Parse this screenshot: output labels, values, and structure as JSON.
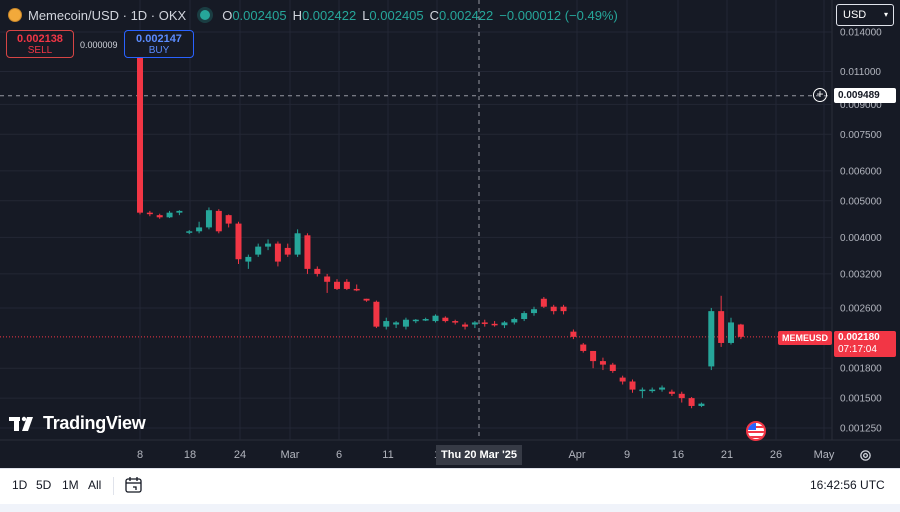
{
  "header": {
    "symbol_title": "Memecoin/USD · 1D · OKX",
    "ohlc": {
      "o_label": "O",
      "o": "0.002405",
      "h_label": "H",
      "h": "0.002422",
      "l_label": "L",
      "l": "0.002405",
      "c_label": "C",
      "c": "0.002422",
      "change": "−0.000012 (−0.49%)"
    },
    "currency": "USD",
    "currency_caret": "▾"
  },
  "trade": {
    "sell_price": "0.002138",
    "sell_label": "SELL",
    "spread": "0.000009",
    "buy_price": "0.002147",
    "buy_label": "BUY"
  },
  "overlay": {
    "crosshair_price": "0.009489",
    "plus_glyph": "+",
    "symbol_tag": "MEMEUSD",
    "last_price": "0.002180",
    "countdown": "07:17:04",
    "crosshair_date": "Thu 20 Mar '25",
    "logo_text": "TradingView"
  },
  "colors": {
    "background": "#161a25",
    "up": "#26a69a",
    "down": "#f23645",
    "grid": "#232735",
    "axis_text": "#b2b5be"
  },
  "icons": [
    "coin-icon",
    "market-status-icon",
    "plus-icon",
    "flag-icon",
    "gear-icon",
    "calendar-icon",
    "tradingview-logo-icon"
  ],
  "bottom": {
    "timeframes": [
      "1D",
      "5D",
      "1M",
      "All"
    ],
    "clock": "16:42:56 UTC"
  },
  "chart_data": {
    "type": "candlestick",
    "y_scale": "log",
    "ylim": [
      0.00115,
      0.0155
    ],
    "ytick_labels": [
      "0.014000",
      "0.011000",
      "0.009000",
      "0.007500",
      "0.006000",
      "0.005000",
      "0.004000",
      "0.003200",
      "0.002600",
      "0.001800",
      "0.001500",
      "0.001250"
    ],
    "xtick_labels": [
      "8",
      "18",
      "24",
      "Mar",
      "6",
      "11",
      "1",
      "Apr",
      "9",
      "16",
      "21",
      "26",
      "May"
    ],
    "series": [
      {
        "values": [
          {
            "o": 0.013,
            "h": 0.013,
            "l": 0.0046,
            "c": 0.00465
          },
          {
            "o": 0.00465,
            "h": 0.0047,
            "l": 0.00455,
            "c": 0.00462
          },
          {
            "o": 0.00458,
            "h": 0.00462,
            "l": 0.00448,
            "c": 0.00452
          },
          {
            "o": 0.00452,
            "h": 0.0047,
            "l": 0.0045,
            "c": 0.00465
          },
          {
            "o": 0.00465,
            "h": 0.00472,
            "l": 0.00458,
            "c": 0.0047
          },
          {
            "o": 0.00412,
            "h": 0.00418,
            "l": 0.00408,
            "c": 0.00415
          },
          {
            "o": 0.00415,
            "h": 0.0044,
            "l": 0.0041,
            "c": 0.00425
          },
          {
            "o": 0.00425,
            "h": 0.0048,
            "l": 0.0042,
            "c": 0.00472
          },
          {
            "o": 0.0047,
            "h": 0.00475,
            "l": 0.0041,
            "c": 0.00415
          },
          {
            "o": 0.00458,
            "h": 0.0046,
            "l": 0.00425,
            "c": 0.00435
          },
          {
            "o": 0.00435,
            "h": 0.0044,
            "l": 0.0034,
            "c": 0.0035
          },
          {
            "o": 0.00345,
            "h": 0.0036,
            "l": 0.0033,
            "c": 0.00355
          },
          {
            "o": 0.0036,
            "h": 0.00385,
            "l": 0.00355,
            "c": 0.00378
          },
          {
            "o": 0.00378,
            "h": 0.00395,
            "l": 0.0037,
            "c": 0.00385
          },
          {
            "o": 0.00385,
            "h": 0.0039,
            "l": 0.00335,
            "c": 0.00345
          },
          {
            "o": 0.00375,
            "h": 0.00385,
            "l": 0.00355,
            "c": 0.0036
          },
          {
            "o": 0.0036,
            "h": 0.0042,
            "l": 0.00355,
            "c": 0.0041
          },
          {
            "o": 0.00405,
            "h": 0.0041,
            "l": 0.0032,
            "c": 0.0033
          },
          {
            "o": 0.0033,
            "h": 0.00335,
            "l": 0.00315,
            "c": 0.0032
          },
          {
            "o": 0.00315,
            "h": 0.0032,
            "l": 0.00285,
            "c": 0.00305
          },
          {
            "o": 0.00305,
            "h": 0.0031,
            "l": 0.0029,
            "c": 0.00292
          },
          {
            "o": 0.00305,
            "h": 0.0031,
            "l": 0.0029,
            "c": 0.00292
          },
          {
            "o": 0.00292,
            "h": 0.003,
            "l": 0.00288,
            "c": 0.0029
          },
          {
            "o": 0.00275,
            "h": 0.00275,
            "l": 0.0027,
            "c": 0.00272
          },
          {
            "o": 0.0027,
            "h": 0.00272,
            "l": 0.0023,
            "c": 0.00232
          },
          {
            "o": 0.00232,
            "h": 0.00245,
            "l": 0.00228,
            "c": 0.0024
          },
          {
            "o": 0.00235,
            "h": 0.0024,
            "l": 0.0023,
            "c": 0.00238
          },
          {
            "o": 0.00232,
            "h": 0.00245,
            "l": 0.00228,
            "c": 0.00242
          },
          {
            "o": 0.0024,
            "h": 0.00243,
            "l": 0.00237,
            "c": 0.00242
          },
          {
            "o": 0.00242,
            "h": 0.00245,
            "l": 0.0024,
            "c": 0.00243
          },
          {
            "o": 0.0024,
            "h": 0.0025,
            "l": 0.00238,
            "c": 0.00248
          },
          {
            "o": 0.00245,
            "h": 0.00247,
            "l": 0.00238,
            "c": 0.0024
          },
          {
            "o": 0.0024,
            "h": 0.00242,
            "l": 0.00235,
            "c": 0.00238
          },
          {
            "o": 0.00235,
            "h": 0.00238,
            "l": 0.00228,
            "c": 0.00232
          },
          {
            "o": 0.00235,
            "h": 0.0024,
            "l": 0.0023,
            "c": 0.00238
          },
          {
            "o": 0.00238,
            "h": 0.00242,
            "l": 0.00232,
            "c": 0.00236
          },
          {
            "o": 0.00236,
            "h": 0.0024,
            "l": 0.00232,
            "c": 0.00234
          },
          {
            "o": 0.00234,
            "h": 0.0024,
            "l": 0.0023,
            "c": 0.00238
          },
          {
            "o": 0.00238,
            "h": 0.00245,
            "l": 0.00235,
            "c": 0.00243
          },
          {
            "o": 0.00243,
            "h": 0.00255,
            "l": 0.0024,
            "c": 0.00252
          },
          {
            "o": 0.00252,
            "h": 0.00262,
            "l": 0.00248,
            "c": 0.00258
          },
          {
            "o": 0.00275,
            "h": 0.00278,
            "l": 0.0026,
            "c": 0.00262
          },
          {
            "o": 0.00262,
            "h": 0.00265,
            "l": 0.0025,
            "c": 0.00255
          },
          {
            "o": 0.00262,
            "h": 0.00265,
            "l": 0.0025,
            "c": 0.00255
          },
          {
            "o": 0.00225,
            "h": 0.00228,
            "l": 0.00215,
            "c": 0.00218
          },
          {
            "o": 0.00208,
            "h": 0.0021,
            "l": 0.00198,
            "c": 0.002
          },
          {
            "o": 0.002,
            "h": 0.002,
            "l": 0.0018,
            "c": 0.00188
          },
          {
            "o": 0.00188,
            "h": 0.00192,
            "l": 0.00178,
            "c": 0.00184
          },
          {
            "o": 0.00184,
            "h": 0.00186,
            "l": 0.00175,
            "c": 0.00177
          },
          {
            "o": 0.0017,
            "h": 0.00172,
            "l": 0.00163,
            "c": 0.00166
          },
          {
            "o": 0.00166,
            "h": 0.00168,
            "l": 0.00155,
            "c": 0.00158
          },
          {
            "o": 0.00158,
            "h": 0.0016,
            "l": 0.0015,
            "c": 0.00158
          },
          {
            "o": 0.00158,
            "h": 0.0016,
            "l": 0.00155,
            "c": 0.00158
          },
          {
            "o": 0.00158,
            "h": 0.00162,
            "l": 0.00156,
            "c": 0.0016
          },
          {
            "o": 0.00156,
            "h": 0.00158,
            "l": 0.00152,
            "c": 0.00154
          },
          {
            "o": 0.00154,
            "h": 0.00156,
            "l": 0.00146,
            "c": 0.0015
          },
          {
            "o": 0.0015,
            "h": 0.00151,
            "l": 0.00141,
            "c": 0.00143
          },
          {
            "o": 0.00143,
            "h": 0.00146,
            "l": 0.00142,
            "c": 0.00145
          },
          {
            "o": 0.00182,
            "h": 0.0026,
            "l": 0.00178,
            "c": 0.00255
          },
          {
            "o": 0.00255,
            "h": 0.0028,
            "l": 0.00205,
            "c": 0.0021
          },
          {
            "o": 0.0021,
            "h": 0.00245,
            "l": 0.00208,
            "c": 0.00238
          },
          {
            "o": 0.00235,
            "h": 0.00236,
            "l": 0.00215,
            "c": 0.00218
          }
        ]
      }
    ]
  }
}
